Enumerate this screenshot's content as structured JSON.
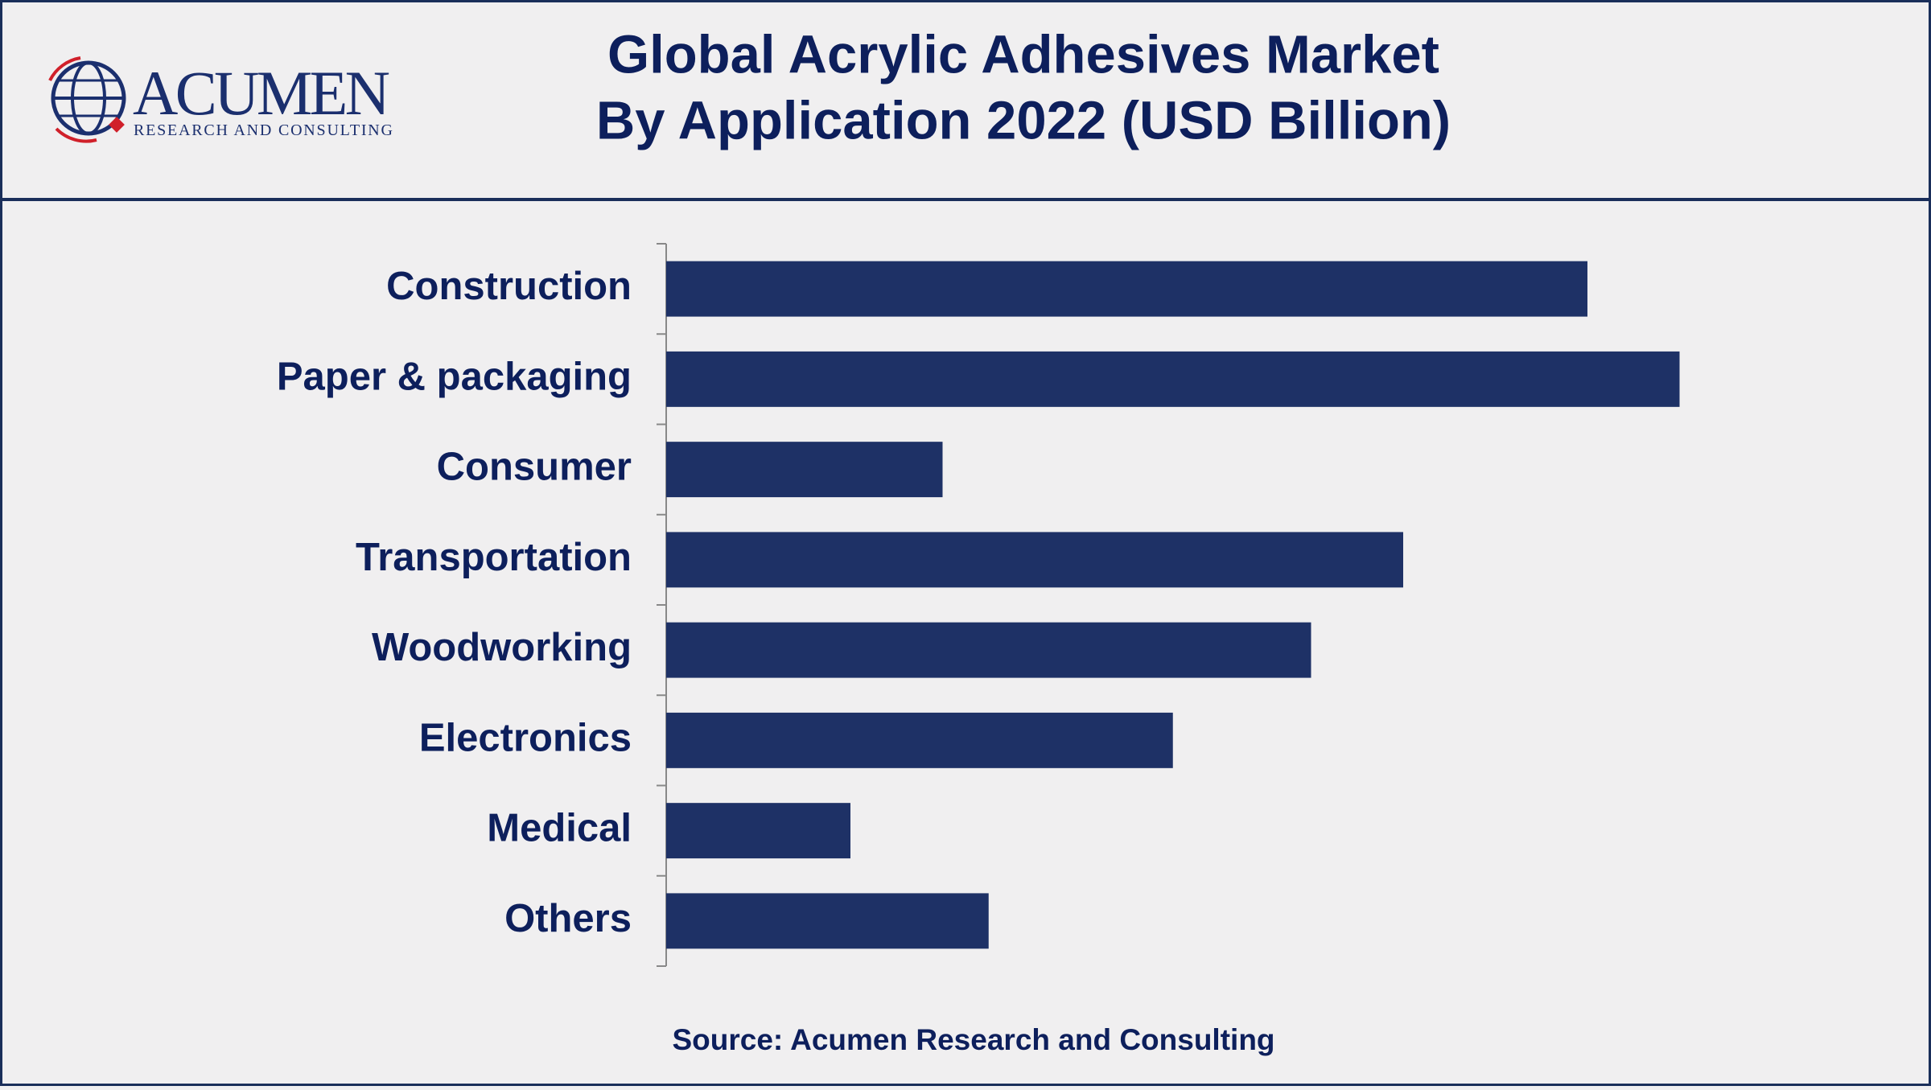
{
  "logo": {
    "name": "ACUMEN",
    "tagline": "RESEARCH AND CONSULTING"
  },
  "chart_data": {
    "type": "bar",
    "orientation": "horizontal",
    "title": [
      "Global Acrylic Adhesives Market",
      "By Application 2022 (USD Billion)"
    ],
    "categories": [
      "Construction",
      "Paper & packaging",
      "Consumer",
      "Transportation",
      "Woodworking",
      "Electronics",
      "Medical",
      "Others"
    ],
    "values": [
      2.0,
      2.2,
      0.6,
      1.6,
      1.4,
      1.1,
      0.4,
      0.7
    ],
    "color": "#1e3166",
    "xlim": [
      0,
      2.4
    ],
    "source": "Source: Acumen Research and Consulting"
  }
}
